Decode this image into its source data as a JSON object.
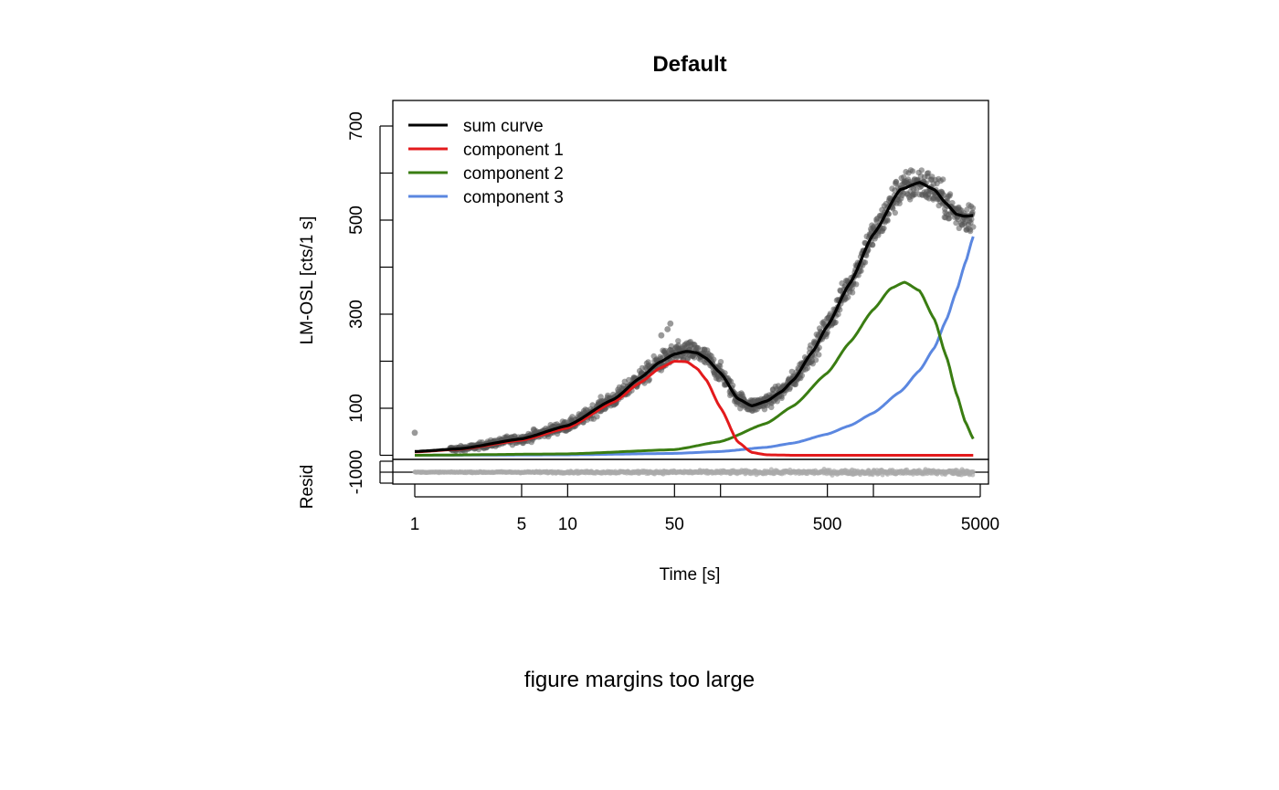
{
  "chart_data": {
    "type": "scatter",
    "title": "Default",
    "xlabel": "Time [s]",
    "ylabel": "LM-OSL [cts/1 s]",
    "resid_label": "Resid",
    "x_scale": "log",
    "xlim": [
      1,
      5000
    ],
    "ylim": [
      0,
      700
    ],
    "x_ticks": [
      1,
      5,
      10,
      50,
      100,
      500,
      1000,
      5000
    ],
    "x_tick_labels": [
      "1",
      "5",
      "10",
      "50",
      "",
      "500",
      "",
      "5000"
    ],
    "y_ticks": [
      0,
      100,
      200,
      300,
      400,
      500,
      600,
      700
    ],
    "y_tick_labels": [
      "",
      "100",
      "",
      "300",
      "",
      "500",
      "",
      "700"
    ],
    "resid_ticks": [
      -1000,
      0,
      1000
    ],
    "resid_tick_label": "-1000",
    "grid": false,
    "legend_position": "top-left",
    "series": [
      {
        "name": "sum curve",
        "color": "#000000",
        "x": [
          1,
          2,
          5,
          10,
          20,
          30,
          40,
          50,
          60,
          70,
          80,
          100,
          130,
          160,
          200,
          250,
          300,
          400,
          500,
          700,
          1000,
          1500,
          2000,
          2500,
          3000,
          3500,
          4000,
          4500
        ],
        "y": [
          8,
          14,
          35,
          63,
          119,
          165,
          198,
          215,
          221,
          218,
          207,
          175,
          120,
          105,
          115,
          135,
          160,
          220,
          275,
          365,
          470,
          565,
          580,
          565,
          535,
          512,
          508,
          510
        ]
      },
      {
        "name": "component 1",
        "color": "#e31a1c",
        "x": [
          1,
          2,
          5,
          10,
          20,
          30,
          40,
          50,
          60,
          70,
          80,
          100,
          130,
          160,
          200,
          300,
          500,
          1000,
          2000,
          4500
        ],
        "y": [
          7,
          13,
          32,
          58,
          113,
          155,
          185,
          200,
          199,
          185,
          162,
          101,
          28,
          6,
          1,
          0,
          0,
          0,
          0,
          0
        ]
      },
      {
        "name": "component 2",
        "color": "#3a7d12",
        "x": [
          1,
          10,
          50,
          100,
          200,
          300,
          500,
          700,
          1000,
          1300,
          1600,
          2000,
          2500,
          3000,
          3500,
          4000,
          4500
        ],
        "y": [
          0,
          3,
          12,
          29,
          68,
          105,
          175,
          240,
          310,
          355,
          368,
          350,
          290,
          210,
          130,
          70,
          35
        ]
      },
      {
        "name": "component 3",
        "color": "#5b87e0",
        "x": [
          1,
          10,
          50,
          100,
          200,
          300,
          500,
          700,
          1000,
          1500,
          2000,
          2500,
          3000,
          3500,
          4000,
          4500
        ],
        "y": [
          0,
          1,
          4,
          8,
          17,
          26,
          45,
          63,
          90,
          135,
          180,
          228,
          288,
          350,
          410,
          465
        ]
      }
    ],
    "measured_data": {
      "label": "",
      "color": "#555555",
      "x_range": [
        1,
        4500
      ],
      "y_range": [
        10,
        665
      ],
      "outliers": [
        {
          "x": 1,
          "y": 48
        },
        {
          "x": 45,
          "y": 268
        },
        {
          "x": 47,
          "y": 280
        },
        {
          "x": 41,
          "y": 255
        },
        {
          "x": 6,
          "y": 55
        },
        {
          "x": 4,
          "y": 40
        }
      ]
    },
    "residuals": {
      "color": "#aaaaaa",
      "values_range": [
        -200,
        200
      ]
    }
  },
  "annotation": {
    "text": "figure margins too large"
  }
}
